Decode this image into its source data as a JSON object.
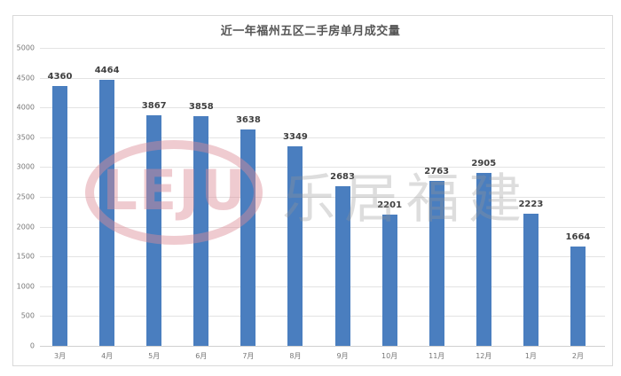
{
  "chart": {
    "title": "近一年福州五区二手房单月成交量",
    "watermark_logo": "LEJU",
    "watermark_text": "乐居福建",
    "bar_color": "#4a7ebf"
  },
  "chart_data": {
    "type": "bar",
    "title": "近一年福州五区二手房单月成交量",
    "xlabel": "",
    "ylabel": "",
    "categories": [
      "3月",
      "4月",
      "5月",
      "6月",
      "7月",
      "8月",
      "9月",
      "10月",
      "11月",
      "12月",
      "1月",
      "2月"
    ],
    "values": [
      4360,
      4464,
      3867,
      3858,
      3638,
      3349,
      2683,
      2201,
      2763,
      2905,
      2223,
      1664
    ],
    "ylim": [
      0,
      5000
    ],
    "yticks": [
      0,
      500,
      1000,
      1500,
      2000,
      2500,
      3000,
      3500,
      4000,
      4500,
      5000
    ],
    "grid": true,
    "legend": null,
    "data_labels": true
  }
}
